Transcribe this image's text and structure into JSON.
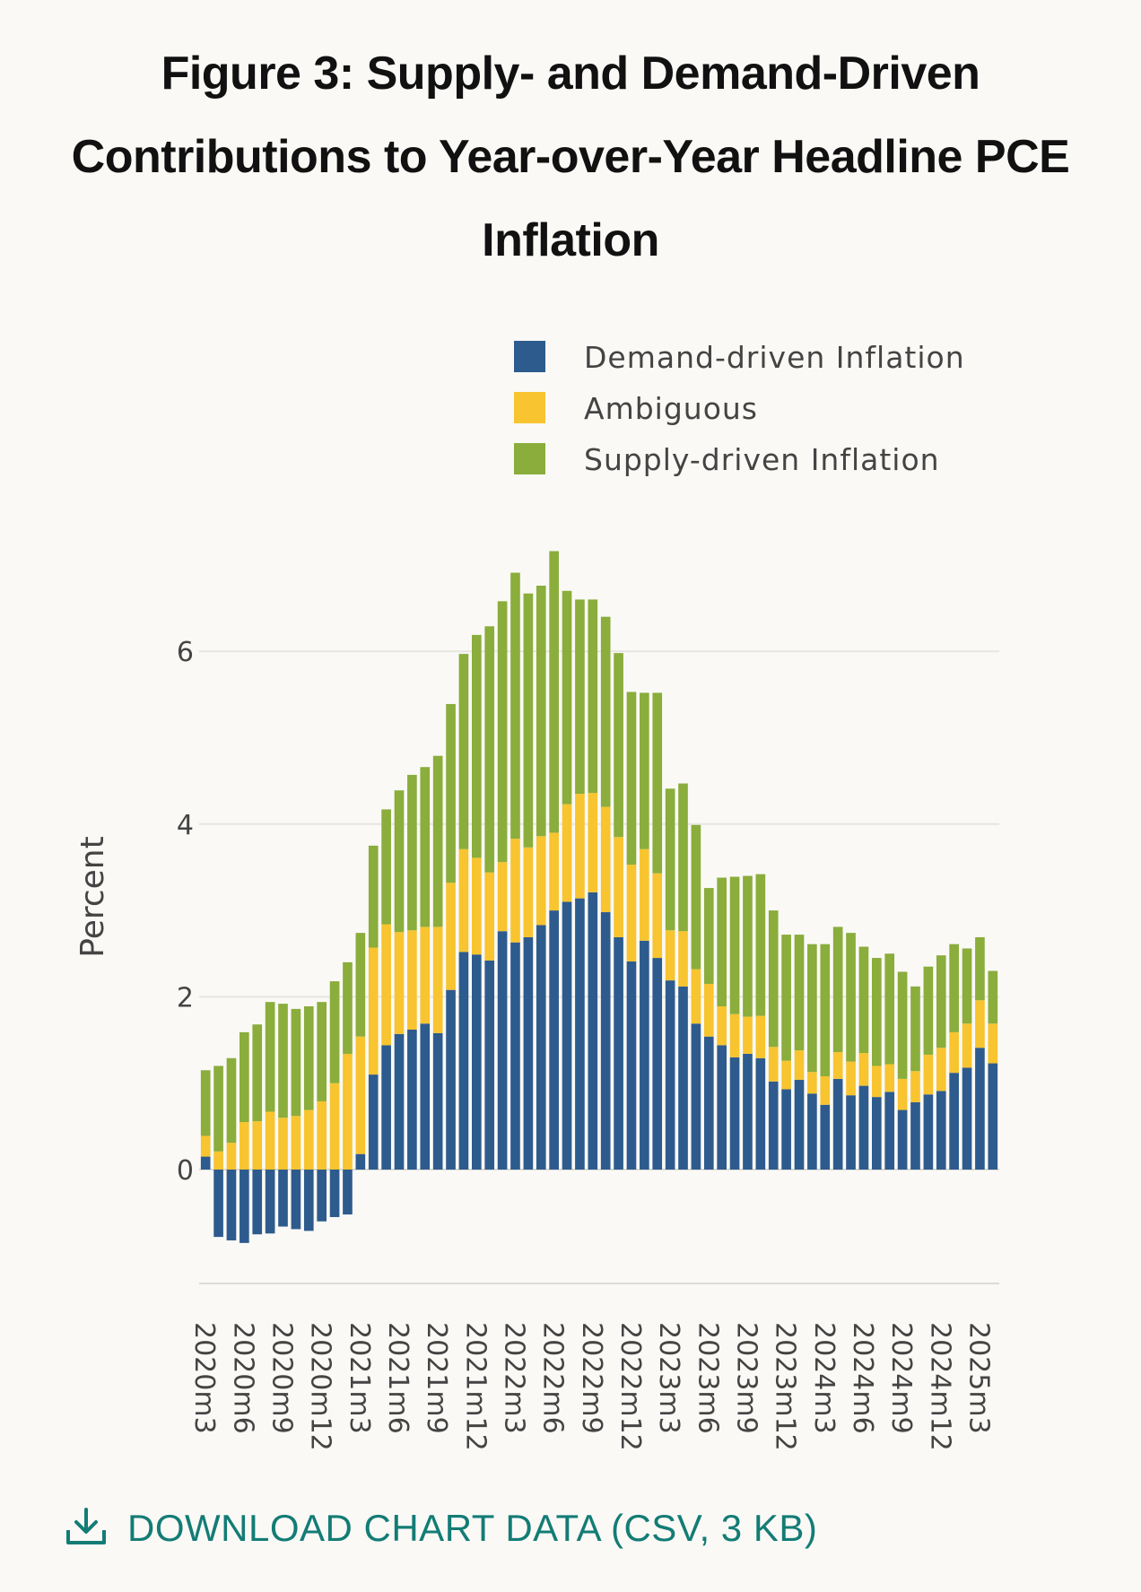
{
  "title": "Figure 3: Supply- and Demand-Driven Contributions to Year-over-Year Headline PCE Inflation",
  "download_label": "DOWNLOAD CHART DATA (CSV, 3 KB)",
  "download_icon": "download-icon",
  "colors": {
    "demand": "#2e5b8d",
    "ambiguous": "#f8c42f",
    "supply": "#8aad3c",
    "accent": "#137c75"
  },
  "chart_data": {
    "type": "bar",
    "stacked": true,
    "ylabel": "Percent",
    "ylim": [
      -1.3,
      7.3
    ],
    "yticks": [
      0,
      2,
      4,
      6
    ],
    "grid": true,
    "legend_position": "top-right",
    "x_tick_labels": [
      "2020m3",
      "2020m6",
      "2020m9",
      "2020m12",
      "2021m3",
      "2021m6",
      "2021m9",
      "2021m12",
      "2022m3",
      "2022m6",
      "2022m9",
      "2022m12",
      "2023m3",
      "2023m6",
      "2023m9",
      "2023m12",
      "2024m3",
      "2024m6",
      "2024m9",
      "2024m12",
      "2025m3"
    ],
    "x": [
      "2020m3",
      "2020m4",
      "2020m5",
      "2020m6",
      "2020m7",
      "2020m8",
      "2020m9",
      "2020m10",
      "2020m11",
      "2020m12",
      "2021m1",
      "2021m2",
      "2021m3",
      "2021m4",
      "2021m5",
      "2021m6",
      "2021m7",
      "2021m8",
      "2021m9",
      "2021m10",
      "2021m11",
      "2021m12",
      "2022m1",
      "2022m2",
      "2022m3",
      "2022m4",
      "2022m5",
      "2022m6",
      "2022m7",
      "2022m8",
      "2022m9",
      "2022m10",
      "2022m11",
      "2022m12",
      "2023m1",
      "2023m2",
      "2023m3",
      "2023m4",
      "2023m5",
      "2023m6",
      "2023m7",
      "2023m8",
      "2023m9",
      "2023m10",
      "2023m11",
      "2023m12",
      "2024m1",
      "2024m2",
      "2024m3",
      "2024m4",
      "2024m5",
      "2024m6",
      "2024m7",
      "2024m8",
      "2024m9",
      "2024m10",
      "2024m11",
      "2024m12",
      "2025m1",
      "2025m2",
      "2025m3",
      "2025m4"
    ],
    "series": [
      {
        "name": "Demand-driven Inflation",
        "values": [
          0.15,
          -0.78,
          -0.82,
          -0.85,
          -0.75,
          -0.74,
          -0.66,
          -0.69,
          -0.71,
          -0.6,
          -0.55,
          -0.52,
          0.18,
          1.1,
          1.44,
          1.57,
          1.62,
          1.69,
          1.58,
          2.08,
          2.52,
          2.49,
          2.42,
          2.76,
          2.63,
          2.69,
          2.83,
          3.0,
          3.1,
          3.14,
          3.21,
          2.98,
          2.69,
          2.41,
          2.65,
          2.45,
          2.19,
          2.12,
          1.69,
          1.54,
          1.44,
          1.3,
          1.34,
          1.29,
          1.02,
          0.93,
          1.04,
          0.88,
          0.75,
          1.05,
          0.86,
          0.97,
          0.84,
          0.9,
          0.69,
          0.78,
          0.87,
          0.91,
          1.12,
          1.18,
          1.41,
          1.23
        ]
      },
      {
        "name": "Ambiguous",
        "values": [
          0.24,
          0.21,
          0.31,
          0.55,
          0.56,
          0.67,
          0.6,
          0.62,
          0.69,
          0.79,
          1.0,
          1.34,
          1.36,
          1.47,
          1.4,
          1.18,
          1.15,
          1.12,
          1.23,
          1.24,
          1.19,
          1.12,
          1.02,
          0.8,
          1.2,
          1.04,
          1.03,
          0.9,
          1.13,
          1.21,
          1.15,
          1.22,
          1.16,
          1.12,
          1.06,
          0.98,
          0.58,
          0.64,
          0.63,
          0.61,
          0.45,
          0.5,
          0.43,
          0.49,
          0.4,
          0.33,
          0.34,
          0.25,
          0.33,
          0.31,
          0.39,
          0.38,
          0.36,
          0.32,
          0.36,
          0.36,
          0.46,
          0.5,
          0.47,
          0.51,
          0.55,
          0.46
        ]
      },
      {
        "name": "Supply-driven Inflation",
        "values": [
          0.76,
          0.99,
          0.98,
          1.04,
          1.12,
          1.27,
          1.32,
          1.24,
          1.2,
          1.15,
          1.18,
          1.06,
          1.2,
          1.18,
          1.33,
          1.64,
          1.8,
          1.85,
          1.98,
          2.07,
          2.26,
          2.58,
          2.85,
          3.02,
          3.08,
          2.94,
          2.9,
          3.26,
          2.47,
          2.25,
          2.24,
          2.2,
          2.13,
          2.0,
          1.81,
          2.09,
          1.64,
          1.71,
          1.67,
          1.11,
          1.49,
          1.59,
          1.63,
          1.64,
          1.58,
          1.46,
          1.34,
          1.48,
          1.53,
          1.45,
          1.49,
          1.23,
          1.25,
          1.28,
          1.24,
          0.98,
          1.02,
          1.07,
          1.02,
          0.87,
          0.73,
          0.61
        ]
      }
    ]
  }
}
